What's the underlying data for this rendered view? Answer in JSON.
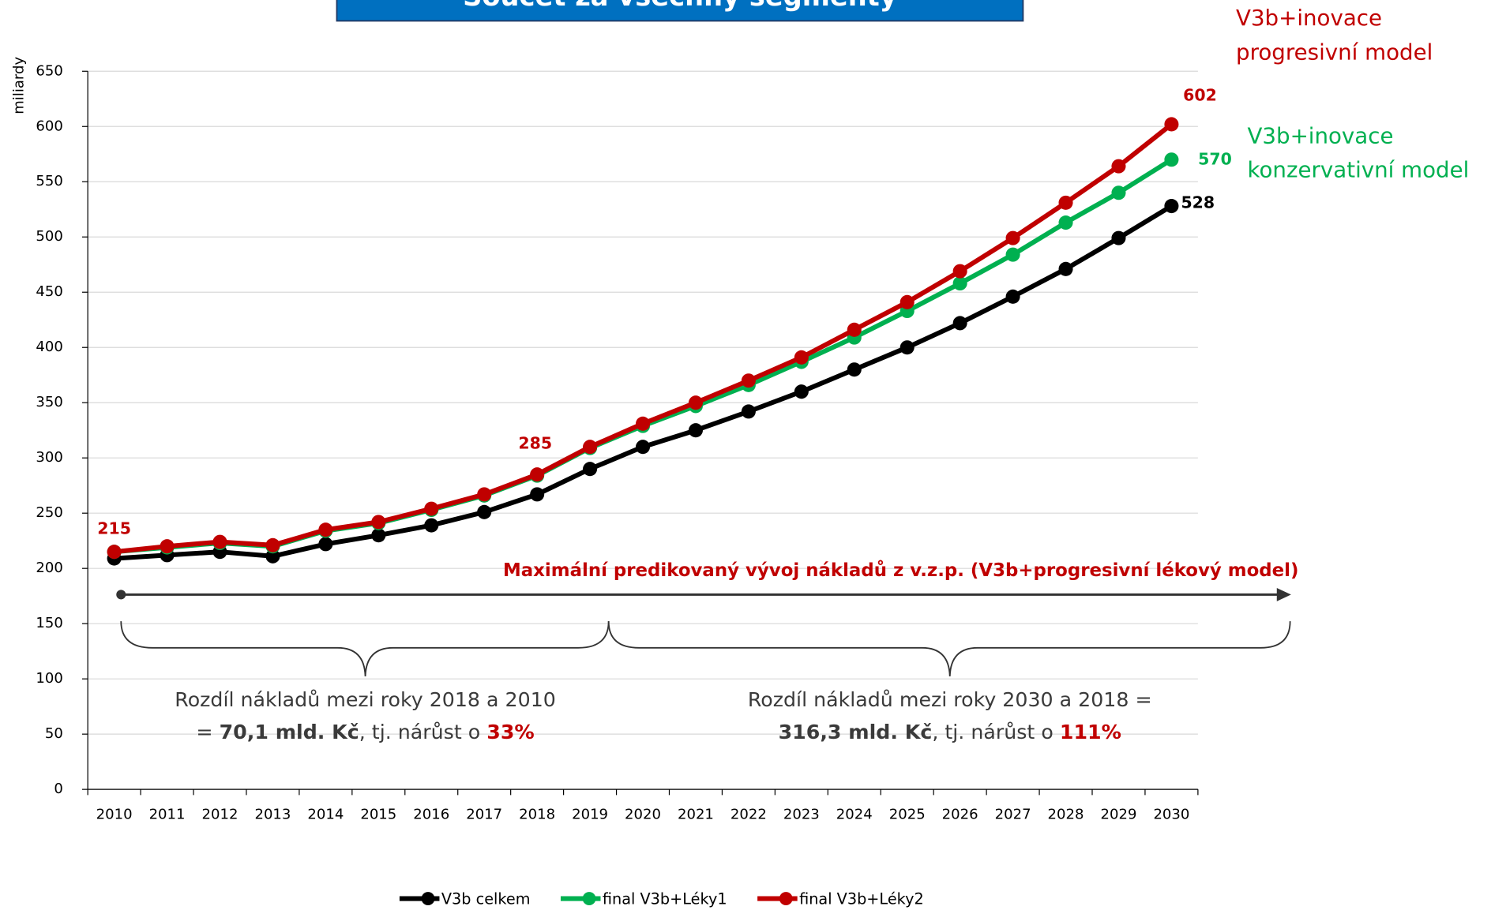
{
  "chart_data": {
    "type": "line",
    "title": "Součet za všechny segmenty",
    "y_label": "miliardy",
    "categories": [
      "2010",
      "2011",
      "2012",
      "2013",
      "2014",
      "2015",
      "2016",
      "2017",
      "2018",
      "2019",
      "2020",
      "2021",
      "2022",
      "2023",
      "2024",
      "2025",
      "2026",
      "2027",
      "2028",
      "2029",
      "2030"
    ],
    "series": [
      {
        "name": "V3b celkem",
        "color": "#000000",
        "values": [
          209,
          212,
          215,
          211,
          222,
          230,
          239,
          251,
          267,
          290,
          310,
          325,
          342,
          360,
          380,
          400,
          422,
          446,
          471,
          499,
          528
        ]
      },
      {
        "name": "final V3b+Léky1",
        "color": "#00b050",
        "values": [
          215,
          219,
          223,
          220,
          234,
          241,
          253,
          266,
          284,
          309,
          329,
          347,
          366,
          387,
          409,
          433,
          458,
          484,
          513,
          540,
          570
        ]
      },
      {
        "name": "final V3b+Léky2",
        "color": "#c00000",
        "values": [
          215,
          220,
          224,
          221,
          235,
          242,
          254,
          267,
          285,
          310,
          331,
          350,
          370,
          391,
          416,
          441,
          469,
          499,
          531,
          564,
          602
        ]
      }
    ],
    "ylim": [
      0,
      650
    ],
    "yticks": [
      0,
      50,
      100,
      150,
      200,
      250,
      300,
      350,
      400,
      450,
      500,
      550,
      600,
      650
    ],
    "grid": true,
    "legend": "bottom",
    "annotations": {
      "progressive": [
        "V3b+inovace",
        "progresivní model"
      ],
      "conservative": [
        "V3b+inovace",
        "konzervativní model"
      ],
      "arrow_text": "Maximální predikovaný vývoj nákladů z v.z.p. (V3b+progresivní lékový model)",
      "left_note": {
        "line1": "Rozdíl nákladů mezi roky 2018 a 2010",
        "line2": [
          "= ",
          "70,1 mld. Kč",
          ", tj. nárůst o ",
          "33%"
        ]
      },
      "right_note": {
        "line1": "Rozdíl nákladů mezi roky 2030 a 2018 =",
        "line2": [
          "316,3 mld. Kč",
          ", tj. nárůst o ",
          "111%"
        ]
      }
    }
  }
}
